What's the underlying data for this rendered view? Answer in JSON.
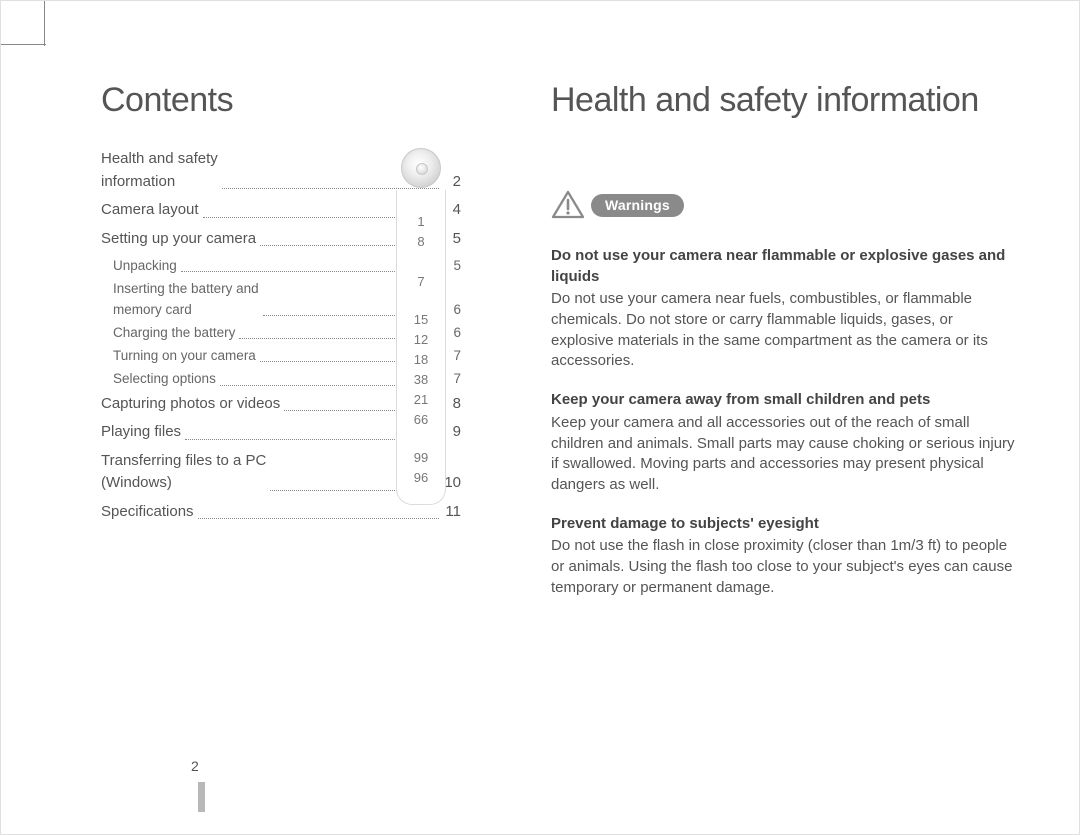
{
  "page_number": "2",
  "left": {
    "heading": "Contents",
    "toc": [
      {
        "label": "Health and safety\ninformation",
        "page": "2",
        "sub": false,
        "side": "1"
      },
      {
        "label": "Camera layout",
        "page": "4",
        "sub": false,
        "side": "8"
      },
      {
        "label": "Setting up your camera",
        "page": "5",
        "sub": false,
        "side": ""
      },
      {
        "label": "Unpacking",
        "page": "5",
        "sub": true,
        "side": "7"
      },
      {
        "label": "Inserting the battery and\nmemory card",
        "page": "6",
        "sub": true,
        "side": "15"
      },
      {
        "label": "Charging the battery",
        "page": "6",
        "sub": true,
        "side": "12"
      },
      {
        "label": "Turning on your camera",
        "page": "7",
        "sub": true,
        "side": "18"
      },
      {
        "label": "Selecting options",
        "page": "7",
        "sub": true,
        "side": "38"
      },
      {
        "label": "Capturing photos or videos",
        "page": "8",
        "sub": false,
        "side": "21"
      },
      {
        "label": "Playing files",
        "page": "9",
        "sub": false,
        "side": "66"
      },
      {
        "label": "Transferring files to a PC\n(Windows)",
        "page": "10",
        "sub": false,
        "side": "99"
      },
      {
        "label": "Specifications",
        "page": "11",
        "sub": false,
        "side": "96"
      }
    ]
  },
  "right": {
    "heading": "Health and safety information",
    "badge": "Warnings",
    "sections": [
      {
        "title": "Do not use your camera near flammable or explosive gases and liquids",
        "body": "Do not use your camera near fuels, combustibles, or flammable chemicals. Do not store or carry flammable liquids, gases, or explosive materials in the same compartment as the camera or its accessories."
      },
      {
        "title": "Keep your camera away from small children and pets",
        "body": "Keep your camera and all accessories out of the reach of small children and animals. Small parts may cause choking or serious injury if swallowed. Moving parts and accessories may present physical dangers as well."
      },
      {
        "title": "Prevent damage to subjects' eyesight",
        "body": "Do not use the flash in close proximity (closer than 1m/3 ft) to people or animals. Using the flash too close to your subject's eyes can cause temporary or permanent damage."
      }
    ]
  },
  "colors": {
    "text": "#4a4a4a",
    "heading": "#555555",
    "pill_bg": "#8a8a8a",
    "pill_fg": "#ffffff",
    "triangle": "#8a8a8a"
  }
}
